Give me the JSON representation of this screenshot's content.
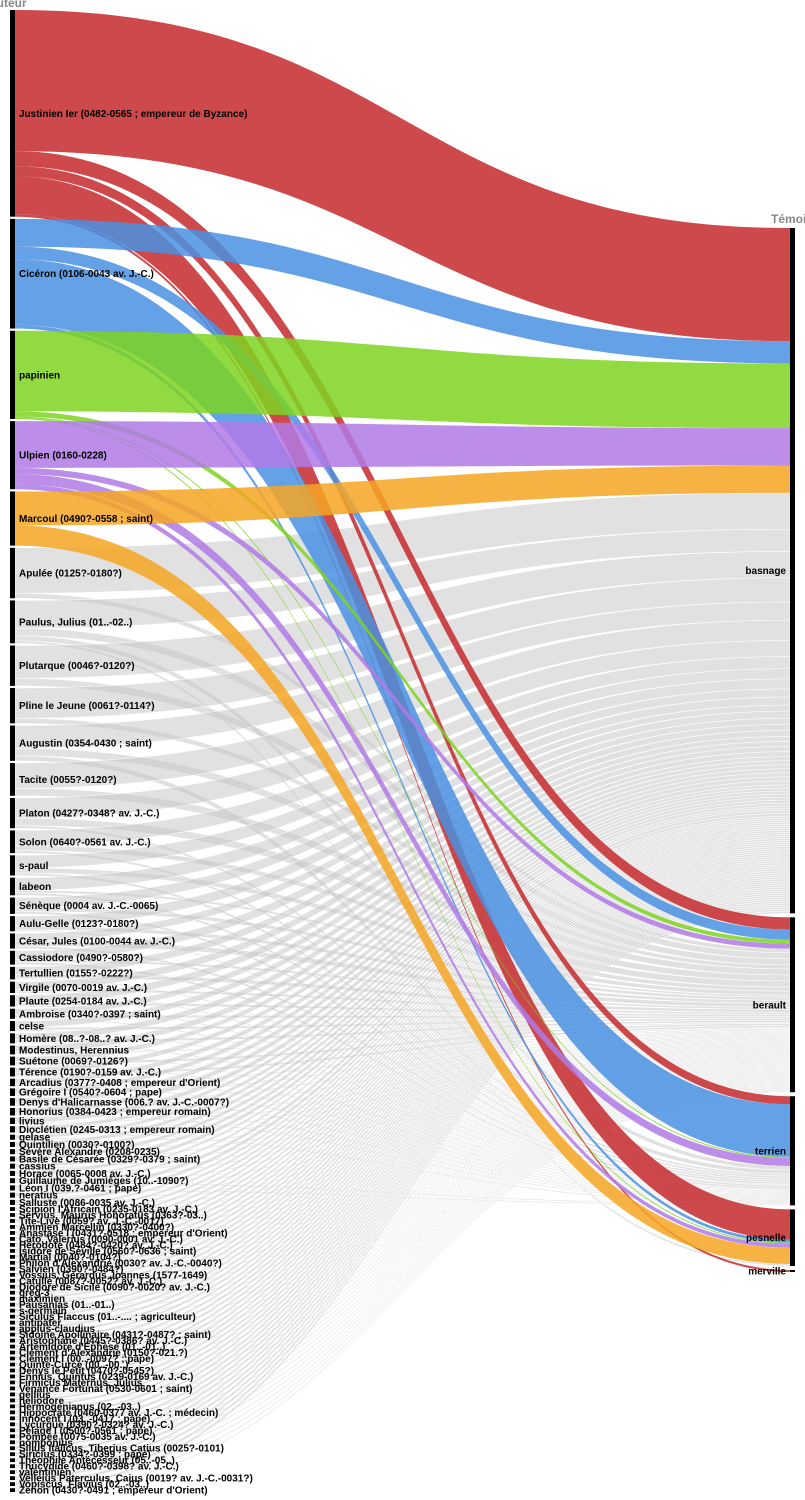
{
  "chart_data": {
    "type": "sankey",
    "title": "",
    "left_axis_label": "Auteur",
    "right_axis_label": "Témoin",
    "targets": [
      "basnage",
      "berault",
      "terrien",
      "pesnelle",
      "merville"
    ],
    "colors": {
      "Justinien Ier (0482-0565 ; empereur de Byzance)": "#c4292b",
      "Cicéron (0106-0043 av. J.-C.)": "#4a90e2",
      "papinien": "#7ed321",
      "Ulpien (0160-0228)": "#b07ae6",
      "Marcoul (0490?-0558 ; saint)": "#f5a623",
      "default": "#c8c8c8"
    },
    "sources": [
      {
        "name": "Justinien Ier (0482-0565 ; empereur de Byzance)",
        "flows": {
          "basnage": 112,
          "berault": 12,
          "terrien": 8,
          "pesnelle": 30,
          "merville": 2
        }
      },
      {
        "name": "Cicéron (0106-0043 av. J.-C.)",
        "flows": {
          "basnage": 22,
          "berault": 10,
          "terrien": 52,
          "pesnelle": 3
        }
      },
      {
        "name": "papinien",
        "flows": {
          "basnage": 64,
          "berault": 4,
          "terrien": 1,
          "pesnelle": 1
        }
      },
      {
        "name": "Ulpien (0160-0228)",
        "flows": {
          "basnage": 37,
          "berault": 5,
          "terrien": 8,
          "pesnelle": 4
        }
      },
      {
        "name": "Marcoul (0490?-0558 ; saint)",
        "flows": {
          "basnage": 27,
          "pesnelle": 16
        }
      },
      {
        "name": "Apulée (0125?-0180?)",
        "flows": {
          "basnage": 36,
          "berault": 4
        }
      },
      {
        "name": "Paulus, Julius (01..-02..)",
        "flows": {
          "basnage": 22,
          "berault": 6,
          "terrien": 4,
          "pesnelle": 2
        }
      },
      {
        "name": "Plutarque (0046?-0120?)",
        "flows": {
          "basnage": 26,
          "berault": 6
        }
      },
      {
        "name": "Pline le Jeune (0061?-0114?)",
        "flows": {
          "basnage": 24,
          "berault": 4
        }
      },
      {
        "name": "Augustin (0354-0430 ; saint)",
        "flows": {
          "basnage": 18,
          "berault": 6,
          "terrien": 4
        }
      },
      {
        "name": "Tacite (0055?-0120?)",
        "flows": {
          "basnage": 20,
          "berault": 6
        }
      },
      {
        "name": "Platon (0427?-0348? av. J.-C.)",
        "flows": {
          "basnage": 16,
          "berault": 6,
          "terrien": 2
        }
      },
      {
        "name": "Solon (0640?-0561 av. J.-C.)",
        "flows": {
          "basnage": 12,
          "berault": 4,
          "terrien": 2
        }
      },
      {
        "name": "s-paul",
        "flows": {
          "basnage": 10,
          "berault": 4,
          "terrien": 2
        }
      },
      {
        "name": "labeon",
        "flows": {
          "basnage": 10,
          "berault": 2,
          "terrien": 2
        }
      },
      {
        "name": "Sénèque (0004 av. J.-C.-0065)",
        "flows": {
          "basnage": 8,
          "berault": 3,
          "terrien": 2
        }
      },
      {
        "name": "Aulu-Gelle (0123?-0180?)",
        "flows": {
          "basnage": 8,
          "berault": 3,
          "terrien": 1
        }
      },
      {
        "name": "César, Jules (0100-0044 av. J.-C.)",
        "flows": {
          "basnage": 6,
          "berault": 4,
          "terrien": 2
        }
      },
      {
        "name": "Cassiodore (0490?-0580?)",
        "flows": {
          "basnage": 7,
          "berault": 2,
          "terrien": 2
        }
      },
      {
        "name": "Tertullien (0155?-0222?)",
        "flows": {
          "basnage": 6,
          "berault": 3,
          "terrien": 1
        }
      },
      {
        "name": "Virgile (0070-0019 av. J.-C.)",
        "flows": {
          "basnage": 6,
          "berault": 2,
          "terrien": 1
        }
      },
      {
        "name": "Plaute (0254-0184 av. J.-C.)",
        "flows": {
          "basnage": 6,
          "berault": 2,
          "terrien": 1
        }
      },
      {
        "name": "Ambroise (0340?-0397 ; saint)",
        "flows": {
          "basnage": 5,
          "berault": 2,
          "terrien": 1
        }
      },
      {
        "name": "celse",
        "flows": {
          "basnage": 5,
          "berault": 2,
          "terrien": 1
        }
      },
      {
        "name": "Homère (08..?-08..? av. J.-C.)",
        "flows": {
          "basnage": 5,
          "berault": 2,
          "terrien": 1
        }
      },
      {
        "name": "Modestinus, Herennius",
        "flows": {
          "basnage": 5,
          "berault": 1,
          "terrien": 1
        }
      },
      {
        "name": "Suétone (0069?-0126?)",
        "flows": {
          "basnage": 4,
          "berault": 2,
          "terrien": 1
        }
      },
      {
        "name": "Térence (0190?-0159 av. J.-C.)",
        "flows": {
          "basnage": 4,
          "berault": 2,
          "terrien": 1
        }
      },
      {
        "name": "Arcadius (0377?-0408 ; empereur d'Orient)",
        "flows": {
          "basnage": 4,
          "berault": 1,
          "terrien": 1
        }
      },
      {
        "name": "Grégoire I (0540?-0604 ; pape)",
        "flows": {
          "basnage": 4,
          "berault": 1,
          "terrien": 1
        }
      },
      {
        "name": "Denys d'Halicarnasse (006.? av. J.-C.-0007?)",
        "flows": {
          "basnage": 4,
          "berault": 1,
          "terrien": 1
        }
      },
      {
        "name": "Honorius (0384-0423 ; empereur romain)",
        "flows": {
          "basnage": 4,
          "berault": 1,
          "terrien": 1
        }
      },
      {
        "name": "livius",
        "flows": {
          "basnage": 4,
          "berault": 1
        }
      },
      {
        "name": "Dioclétien (0245-0313 ; empereur romain)",
        "flows": {
          "basnage": 3,
          "berault": 1,
          "terrien": 1
        }
      },
      {
        "name": "gelase",
        "flows": {
          "basnage": 3,
          "berault": 1
        }
      },
      {
        "name": "Quintilien (0030?-0100?)",
        "flows": {
          "basnage": 3,
          "berault": 1
        }
      },
      {
        "name": "Sévère Alexandre (0208-0235)",
        "flows": {
          "basnage": 3,
          "berault": 1
        }
      },
      {
        "name": "Basile de Césarée (0329?-0379 ; saint)",
        "flows": {
          "basnage": 3,
          "berault": 1
        }
      },
      {
        "name": "cassius",
        "flows": {
          "basnage": 3,
          "berault": 1
        }
      },
      {
        "name": "Horace (0065-0008 av. J.-C.)",
        "flows": {
          "basnage": 3,
          "berault": 1
        }
      },
      {
        "name": "Guillaume de Jumièges (10..-1090?)",
        "flows": {
          "basnage": 2,
          "berault": 1,
          "terrien": 1
        }
      },
      {
        "name": "Léon I (039.?-0461 ; pape)",
        "flows": {
          "basnage": 2,
          "berault": 1,
          "terrien": 1
        }
      },
      {
        "name": "neratius",
        "flows": {
          "basnage": 3,
          "berault": 1
        }
      },
      {
        "name": "Salluste (0086-0035 av. J.-C.)",
        "flows": {
          "basnage": 3,
          "berault": 1
        }
      },
      {
        "name": "Scipion l'Africain (0235-0183 av. J.-C.)",
        "flows": {
          "basnage": 2,
          "berault": 1
        }
      },
      {
        "name": "Servius, Maurus Honoratus (0363?-03..)",
        "flows": {
          "basnage": 2,
          "berault": 1
        }
      },
      {
        "name": "Tite-Live (0059? av. J.-C.-0017)",
        "flows": {
          "basnage": 2,
          "berault": 1
        }
      },
      {
        "name": "Ammien Marcellin (0330?-0400?)",
        "flows": {
          "basnage": 2,
          "berault": 1
        }
      },
      {
        "name": "Anastase I (0431?-0518 ; empereur d'Orient)",
        "flows": {
          "basnage": 2,
          "berault": 1
        }
      },
      {
        "name": "Cato, Valerius (0090-0001 av. J.-C.)",
        "flows": {
          "basnage": 2,
          "berault": 1
        }
      },
      {
        "name": "Hérodote (0484?-0420? av. J.-C.)",
        "flows": {
          "basnage": 2,
          "berault": 1
        }
      },
      {
        "name": "Isidore de Séville (0560?-0636 ; saint)",
        "flows": {
          "basnage": 2,
          "berault": 1
        }
      },
      {
        "name": "Martial (0040?-0104?)",
        "flows": {
          "basnage": 2,
          "berault": 1
        }
      },
      {
        "name": "Philon d'Alexandrie (0030? av. J.-C.-0040?)",
        "flows": {
          "basnage": 2,
          "berault": 1
        }
      },
      {
        "name": "Salvien (0390?-0484?)",
        "flows": {
          "basnage": 2,
          "berault": 1
        }
      },
      {
        "name": "Vossius, Gerardus Joannes (1577-1649)",
        "flows": {
          "basnage": 2,
          "berault": 1
        }
      },
      {
        "name": "Catulle (0087?-0052? av. J.-C.)",
        "flows": {
          "basnage": 2,
          "berault": 1
        }
      },
      {
        "name": "Diodore de Sicile (0090?-0020? av. J.-C.)",
        "flows": {
          "basnage": 2,
          "berault": 1
        }
      },
      {
        "name": "greg-3",
        "flows": {
          "basnage": 2,
          "berault": 1
        }
      },
      {
        "name": "maximien",
        "flows": {
          "basnage": 2,
          "berault": 1
        }
      },
      {
        "name": "Pausanias (01..-01..)",
        "flows": {
          "basnage": 2,
          "berault": 1
        }
      },
      {
        "name": "s-germain",
        "flows": {
          "basnage": 2,
          "berault": 1
        }
      },
      {
        "name": "Siculus Flaccus (01..-.... ; agriculteur)",
        "flows": {
          "basnage": 2,
          "berault": 1
        }
      },
      {
        "name": "antipater",
        "flows": {
          "basnage": 2,
          "berault": 1
        }
      },
      {
        "name": "appius-claudius",
        "flows": {
          "basnage": 2,
          "berault": 1
        }
      },
      {
        "name": "Sidoine Apollinaire (0431?-0487? ; saint)",
        "flows": {
          "basnage": 2,
          "berault": 1
        }
      },
      {
        "name": "Aristophane (0445?-0386? av. J.-C.)",
        "flows": {
          "basnage": 2,
          "berault": 1
        }
      },
      {
        "name": "Artémidore d'Éphèse (01..-01..)",
        "flows": {
          "basnage": 2,
          "berault": 1
        }
      },
      {
        "name": "Clément d'Alexandrie (0150?-021.?)",
        "flows": {
          "basnage": 2,
          "berault": 1
        }
      },
      {
        "name": "Clément I (00..-0097? ; pape)",
        "flows": {
          "basnage": 2,
          "berault": 1
        }
      },
      {
        "name": "Quinte-Curce (00..-00..)",
        "flows": {
          "basnage": 2,
          "berault": 1
        }
      },
      {
        "name": "Denys le Petit (0470?-0545?)",
        "flows": {
          "basnage": 2,
          "berault": 1
        }
      },
      {
        "name": "Ennius, Quintus (0239-0169 av. J.-C.)",
        "flows": {
          "basnage": 2,
          "berault": 1
        }
      },
      {
        "name": "Firmicus Maternus, Julius",
        "flows": {
          "basnage": 2,
          "berault": 1
        }
      },
      {
        "name": "Venance Fortunat (0530-0601 ; saint)",
        "flows": {
          "basnage": 2,
          "berault": 1
        }
      },
      {
        "name": "gellius",
        "flows": {
          "basnage": 2,
          "berault": 1
        }
      },
      {
        "name": "heliodore",
        "flows": {
          "basnage": 2,
          "berault": 1
        }
      },
      {
        "name": "Hermogenianus (02..-03..)",
        "flows": {
          "basnage": 2,
          "berault": 1
        }
      },
      {
        "name": "Hippocrate (0460-0377 av. J.-C. ; médecin)",
        "flows": {
          "basnage": 2,
          "berault": 1
        }
      },
      {
        "name": "Innocent I (03..-0417 ; pape)",
        "flows": {
          "basnage": 2,
          "berault": 1
        }
      },
      {
        "name": "Lycurgue (0390?-0324? av. J.-C.)",
        "flows": {
          "basnage": 2,
          "berault": 1
        }
      },
      {
        "name": "Pélage I (0500?-0561 ; pape)",
        "flows": {
          "basnage": 2,
          "berault": 1
        }
      },
      {
        "name": "Pompée (0075-0035 av. J.-C.)",
        "flows": {
          "basnage": 2,
          "berault": 1
        }
      },
      {
        "name": "pomponius",
        "flows": {
          "basnage": 2,
          "berault": 1
        }
      },
      {
        "name": "Silius Italicus, Tiberius Catius (0025?-0101)",
        "flows": {
          "basnage": 2,
          "berault": 1
        }
      },
      {
        "name": "Siricius (0334?-0399 ; pape)",
        "flows": {
          "basnage": 2,
          "berault": 1
        }
      },
      {
        "name": "Théophile Antécesseur (05..-05..)",
        "flows": {
          "basnage": 2,
          "berault": 1
        }
      },
      {
        "name": "Thucydide (0460?-0398? av. J.-C.)",
        "flows": {
          "basnage": 2,
          "berault": 1
        }
      },
      {
        "name": "valentinien",
        "flows": {
          "basnage": 2,
          "berault": 1
        }
      },
      {
        "name": "Velleius Paterculus, Caius (0019? av. J.-C.-0031?)",
        "flows": {
          "basnage": 2,
          "berault": 1
        }
      },
      {
        "name": "Vopiscus, Flavius (02..-03..)",
        "flows": {
          "basnage": 2,
          "berault": 1
        }
      },
      {
        "name": "Zénon (0430?-0491 ; empereur d'Orient)",
        "flows": {
          "basnage": 2,
          "berault": 1
        }
      }
    ]
  }
}
